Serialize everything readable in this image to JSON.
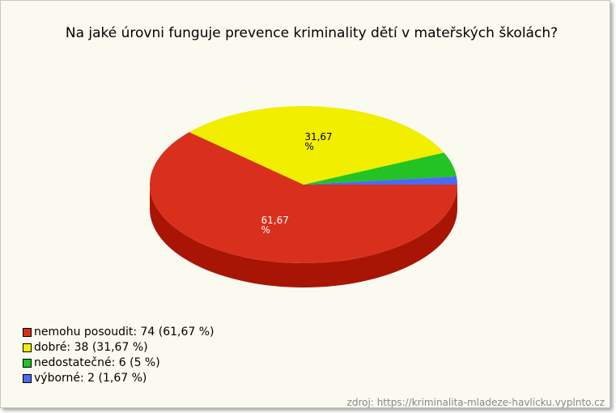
{
  "chart_data": {
    "type": "pie3d",
    "title": "Na jaké úrovni funguje prevence kriminality dětí v mateřských školách?",
    "categories": [
      "nemohu posoudit",
      "dobré",
      "nedostatečné",
      "výborné"
    ],
    "values": [
      61.67,
      31.67,
      5,
      1.67
    ],
    "value_labels": [
      "61,67 %",
      "31,67 %",
      null,
      null
    ],
    "legend_labels": [
      "nemohu posoudit: 74 (61,67 %)",
      "dobré: 38 (31,67 %)",
      "nedostatečné: 6 (5 %)",
      "výborné: 2 (1,67 %)"
    ],
    "colors": [
      "#d9301d",
      "#f2ee00",
      "#22c322",
      "#4b6cf0"
    ],
    "side_colors": [
      "#a81505",
      "#c2bc00",
      "#15901a",
      "#2f48b8"
    ],
    "label_colors": [
      "#ffffff",
      "#000000",
      "#000000",
      "#000000"
    ],
    "source": "zdroj: https://kriminalita-mladeze-havlicku.vyplnto.cz"
  }
}
